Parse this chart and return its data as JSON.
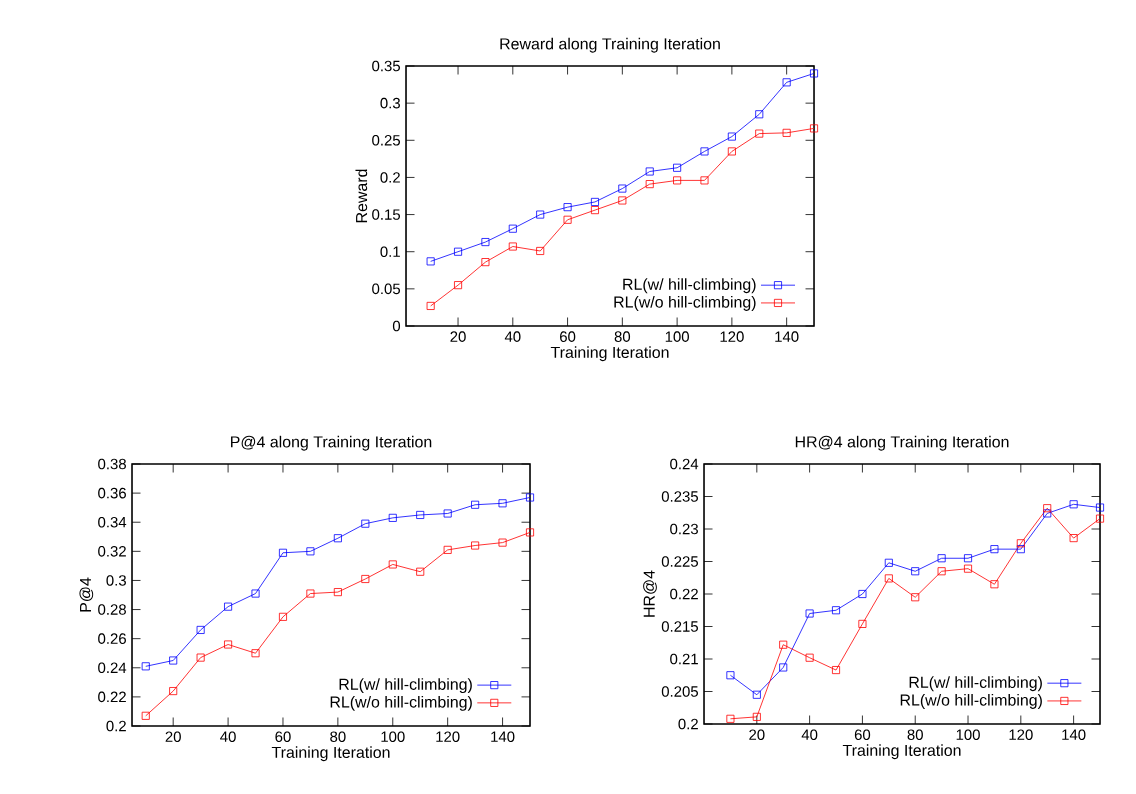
{
  "chart_data": [
    {
      "type": "line",
      "title": "Reward along Training Iteration",
      "xlabel": "Training Iteration",
      "ylabel": "Reward",
      "x": [
        10,
        20,
        30,
        40,
        50,
        60,
        70,
        80,
        90,
        100,
        110,
        120,
        130,
        140,
        150
      ],
      "series": [
        {
          "name": "RL(w/ hill-climbing)",
          "color": "#0000ff",
          "values": [
            0.087,
            0.1,
            0.113,
            0.131,
            0.15,
            0.16,
            0.167,
            0.185,
            0.208,
            0.213,
            0.235,
            0.255,
            0.285,
            0.328,
            0.34
          ]
        },
        {
          "name": "RL(w/o hill-climbing)",
          "color": "#ff0000",
          "values": [
            0.027,
            0.055,
            0.086,
            0.107,
            0.101,
            0.143,
            0.156,
            0.169,
            0.191,
            0.196,
            0.196,
            0.235,
            0.259,
            0.26,
            0.266
          ]
        }
      ],
      "xlim": [
        1,
        150
      ],
      "xticks": [
        20,
        40,
        60,
        80,
        100,
        120,
        140
      ],
      "ylim": [
        0,
        0.35
      ],
      "yticks": [
        0,
        0.05,
        0.1,
        0.15,
        0.2,
        0.25,
        0.3,
        0.35
      ],
      "legend": "bottom right",
      "marker": "square",
      "line_style": "solid",
      "grid": false
    },
    {
      "type": "line",
      "title": "P@4 along Training Iteration",
      "xlabel": "Training Iteration",
      "ylabel": "P@4",
      "x": [
        10,
        20,
        30,
        40,
        50,
        60,
        70,
        80,
        90,
        100,
        110,
        120,
        130,
        140,
        150
      ],
      "series": [
        {
          "name": "RL(w/ hill-climbing)",
          "color": "#0000ff",
          "values": [
            0.241,
            0.245,
            0.266,
            0.282,
            0.291,
            0.319,
            0.32,
            0.329,
            0.339,
            0.343,
            0.345,
            0.346,
            0.352,
            0.353,
            0.357
          ]
        },
        {
          "name": "RL(w/o hill-climbing)",
          "color": "#ff0000",
          "values": [
            0.207,
            0.224,
            0.247,
            0.256,
            0.25,
            0.275,
            0.291,
            0.292,
            0.301,
            0.311,
            0.306,
            0.321,
            0.324,
            0.326,
            0.333
          ]
        }
      ],
      "xlim": [
        5,
        150
      ],
      "xticks": [
        20,
        40,
        60,
        80,
        100,
        120,
        140
      ],
      "ylim": [
        0.2,
        0.38
      ],
      "yticks": [
        0.2,
        0.22,
        0.24,
        0.26,
        0.28,
        0.3,
        0.32,
        0.34,
        0.36,
        0.38
      ],
      "legend": "bottom right",
      "marker": "square",
      "line_style": "solid",
      "grid": false
    },
    {
      "type": "line",
      "title": "HR@4 along Training Iteration",
      "xlabel": "Training Iteration",
      "ylabel": "HR@4",
      "x": [
        10,
        20,
        30,
        40,
        50,
        60,
        70,
        80,
        90,
        100,
        110,
        120,
        130,
        140,
        150
      ],
      "series": [
        {
          "name": "RL(w/ hill-climbing)",
          "color": "#0000ff",
          "values": [
            0.2075,
            0.2045,
            0.2087,
            0.217,
            0.2175,
            0.22,
            0.2248,
            0.2235,
            0.2255,
            0.2255,
            0.2269,
            0.2269,
            0.2324,
            0.2338,
            0.2333
          ]
        },
        {
          "name": "RL(w/o hill-climbing)",
          "color": "#ff0000",
          "values": [
            0.2008,
            0.2011,
            0.2122,
            0.2102,
            0.2083,
            0.2154,
            0.2224,
            0.2195,
            0.2235,
            0.2239,
            0.2215,
            0.2278,
            0.2332,
            0.2286,
            0.2316
          ]
        }
      ],
      "xlim": [
        0,
        150
      ],
      "xticks": [
        20,
        40,
        60,
        80,
        100,
        120,
        140
      ],
      "ylim": [
        0.2,
        0.24
      ],
      "yticks": [
        0.2,
        0.205,
        0.21,
        0.215,
        0.22,
        0.225,
        0.23,
        0.235,
        0.24
      ],
      "legend": "bottom right",
      "marker": "square",
      "line_style": "solid",
      "grid": false
    }
  ]
}
